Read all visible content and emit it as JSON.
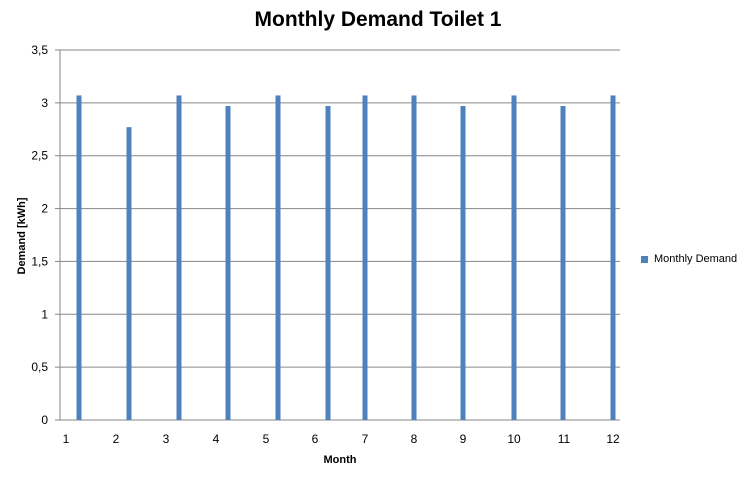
{
  "chart_data": {
    "type": "bar",
    "title": "Monthly Demand Toilet 1",
    "xlabel": "Month",
    "ylabel": "Demand [kWh]",
    "categories": [
      "1",
      "2",
      "3",
      "4",
      "5",
      "6",
      "7",
      "8",
      "9",
      "10",
      "11",
      "12"
    ],
    "series": [
      {
        "name": "Monthly Demand",
        "values": [
          3.07,
          2.77,
          3.07,
          2.97,
          3.07,
          2.97,
          3.07,
          3.07,
          2.97,
          3.07,
          2.97,
          3.07
        ]
      }
    ],
    "ylim": [
      0,
      3.5
    ],
    "yticks": [
      0,
      0.5,
      1,
      1.5,
      2,
      2.5,
      3,
      3.5
    ],
    "ytick_labels": [
      "0",
      "0,5",
      "1",
      "1,5",
      "2",
      "2,5",
      "3",
      "3,5"
    ],
    "grid": true,
    "legend_position": "right",
    "bar_color": "#4F81BD",
    "grid_color": "#868686"
  }
}
